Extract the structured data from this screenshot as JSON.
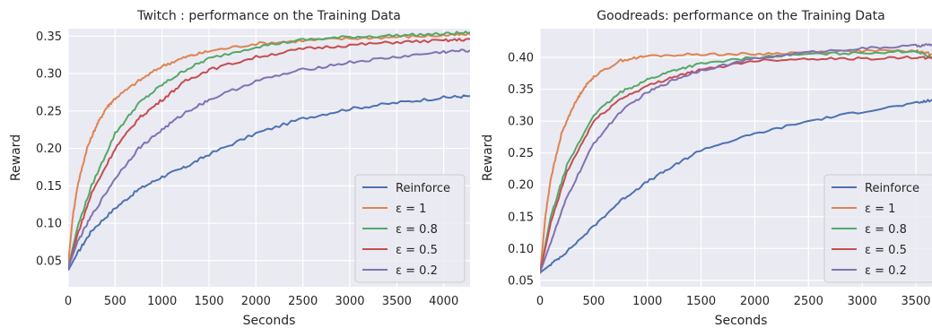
{
  "chart_data": [
    {
      "type": "line",
      "title": "Twitch : performance on the Training Data",
      "xlabel": "Seconds",
      "ylabel": "Reward",
      "xlim": [
        0,
        4280
      ],
      "ylim": [
        0.015,
        0.36
      ],
      "xticks": [
        0,
        500,
        1000,
        1500,
        2000,
        2500,
        3000,
        3500,
        4000
      ],
      "xtick_labels": [
        "0",
        "500",
        "1000",
        "1500",
        "2000",
        "2500",
        "3000",
        "3500",
        "4000"
      ],
      "yticks": [
        0.05,
        0.1,
        0.15,
        0.2,
        0.25,
        0.3,
        0.35
      ],
      "ytick_labels": [
        "0.05",
        "0.10",
        "0.15",
        "0.20",
        "0.25",
        "0.30",
        "0.35"
      ],
      "grid": true,
      "legend_position": "lower-right",
      "series": [
        {
          "name": "Reinforce",
          "color": "#4c72b0",
          "x": [
            0,
            100,
            250,
            500,
            750,
            1000,
            1250,
            1500,
            2000,
            2500,
            3000,
            3500,
            4000,
            4280
          ],
          "y": [
            0.037,
            0.06,
            0.09,
            0.12,
            0.145,
            0.162,
            0.175,
            0.192,
            0.22,
            0.24,
            0.253,
            0.261,
            0.268,
            0.27
          ]
        },
        {
          "name": "ε = 1",
          "color": "#dd8452",
          "x": [
            0,
            50,
            100,
            200,
            300,
            400,
            500,
            750,
            1000,
            1250,
            1500,
            2000,
            2500,
            3000,
            3500,
            4000,
            4280
          ],
          "y": [
            0.045,
            0.11,
            0.15,
            0.2,
            0.23,
            0.253,
            0.267,
            0.29,
            0.31,
            0.322,
            0.33,
            0.34,
            0.344,
            0.347,
            0.349,
            0.351,
            0.352
          ]
        },
        {
          "name": "ε = 0.8",
          "color": "#55a868",
          "x": [
            0,
            100,
            250,
            500,
            750,
            1000,
            1250,
            1500,
            2000,
            2500,
            3000,
            3500,
            4000,
            4280
          ],
          "y": [
            0.04,
            0.095,
            0.15,
            0.22,
            0.26,
            0.285,
            0.305,
            0.32,
            0.336,
            0.345,
            0.349,
            0.351,
            0.353,
            0.355
          ]
        },
        {
          "name": "ε = 0.5",
          "color": "#c44e52",
          "x": [
            0,
            100,
            250,
            500,
            750,
            1000,
            1250,
            1500,
            2000,
            2500,
            3000,
            3500,
            4000,
            4280
          ],
          "y": [
            0.04,
            0.085,
            0.14,
            0.2,
            0.24,
            0.265,
            0.29,
            0.305,
            0.322,
            0.333,
            0.338,
            0.342,
            0.344,
            0.346
          ]
        },
        {
          "name": "ε = 0.2",
          "color": "#8172b3",
          "x": [
            0,
            100,
            250,
            500,
            750,
            1000,
            1250,
            1500,
            2000,
            2500,
            3000,
            3500,
            4000,
            4280
          ],
          "y": [
            0.04,
            0.075,
            0.11,
            0.16,
            0.2,
            0.225,
            0.248,
            0.265,
            0.29,
            0.305,
            0.315,
            0.322,
            0.329,
            0.331
          ]
        }
      ]
    },
    {
      "type": "line",
      "title": "Goodreads: performance on the Training Data",
      "xlabel": "Seconds",
      "ylabel": "Reward",
      "xlim": [
        0,
        3650
      ],
      "ylim": [
        0.04,
        0.445
      ],
      "xticks": [
        0,
        500,
        1000,
        1500,
        2000,
        2500,
        3000,
        3500
      ],
      "xtick_labels": [
        "0",
        "500",
        "1000",
        "1500",
        "2000",
        "2500",
        "3000",
        "3500"
      ],
      "yticks": [
        0.05,
        0.1,
        0.15,
        0.2,
        0.25,
        0.3,
        0.35,
        0.4
      ],
      "ytick_labels": [
        "0.05",
        "0.10",
        "0.15",
        "0.20",
        "0.25",
        "0.30",
        "0.35",
        "0.40"
      ],
      "grid": true,
      "legend_position": "lower-right",
      "series": [
        {
          "name": "Reinforce",
          "color": "#4c72b0",
          "x": [
            0,
            100,
            250,
            500,
            750,
            1000,
            1250,
            1500,
            2000,
            2500,
            3000,
            3500,
            3650
          ],
          "y": [
            0.062,
            0.075,
            0.095,
            0.135,
            0.175,
            0.205,
            0.23,
            0.255,
            0.28,
            0.3,
            0.315,
            0.328,
            0.333
          ]
        },
        {
          "name": "ε = 1",
          "color": "#dd8452",
          "x": [
            0,
            50,
            100,
            200,
            300,
            400,
            500,
            750,
            1000,
            1500,
            2000,
            2500,
            3000,
            3500,
            3650
          ],
          "y": [
            0.06,
            0.15,
            0.21,
            0.28,
            0.32,
            0.35,
            0.37,
            0.395,
            0.402,
            0.405,
            0.405,
            0.408,
            0.41,
            0.41,
            0.405
          ]
        },
        {
          "name": "ε = 0.8",
          "color": "#55a868",
          "x": [
            0,
            100,
            250,
            500,
            750,
            1000,
            1250,
            1500,
            2000,
            2500,
            3000,
            3500,
            3650
          ],
          "y": [
            0.062,
            0.15,
            0.23,
            0.31,
            0.345,
            0.365,
            0.38,
            0.39,
            0.4,
            0.405,
            0.407,
            0.41,
            0.4
          ]
        },
        {
          "name": "ε = 0.5",
          "color": "#c44e52",
          "x": [
            0,
            100,
            250,
            500,
            750,
            1000,
            1250,
            1500,
            2000,
            2500,
            3000,
            3500,
            3650
          ],
          "y": [
            0.062,
            0.14,
            0.22,
            0.3,
            0.335,
            0.355,
            0.37,
            0.38,
            0.395,
            0.398,
            0.398,
            0.4,
            0.398
          ]
        },
        {
          "name": "ε = 0.2",
          "color": "#8172b3",
          "x": [
            0,
            100,
            250,
            500,
            750,
            1000,
            1250,
            1500,
            2000,
            2500,
            3000,
            3500,
            3650
          ],
          "y": [
            0.062,
            0.11,
            0.18,
            0.265,
            0.315,
            0.345,
            0.365,
            0.38,
            0.398,
            0.408,
            0.414,
            0.418,
            0.42
          ]
        }
      ]
    }
  ]
}
